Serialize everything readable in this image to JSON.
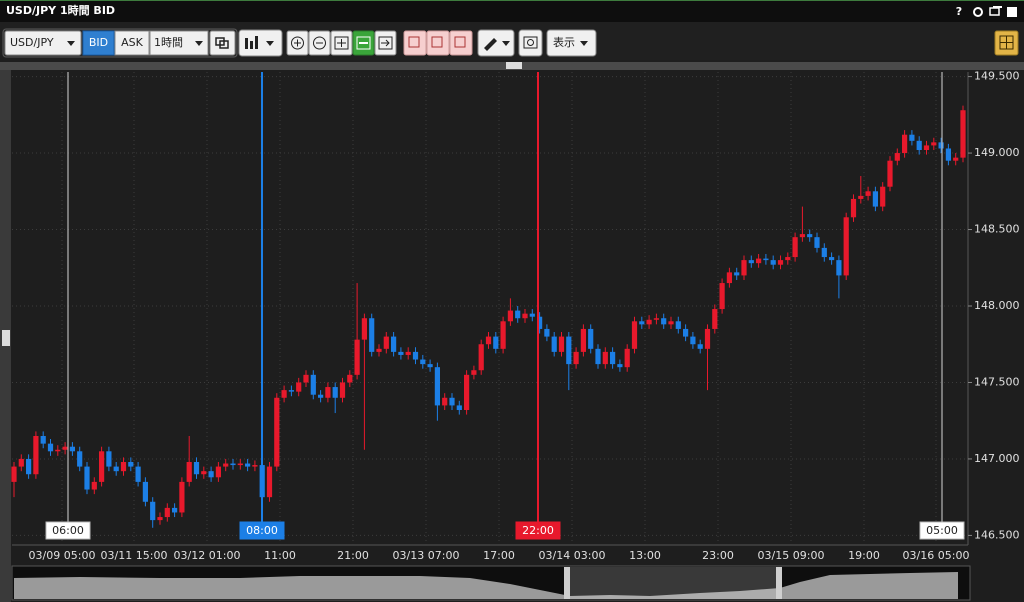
{
  "window": {
    "title": "USD/JPY 1時間 BID",
    "help": "?"
  },
  "toolbar": {
    "symbol": "USD/JPY",
    "bid": "BID",
    "ask": "ASK",
    "timeframe": "1時間",
    "view": "表示"
  },
  "chart_data": {
    "type": "candlestick",
    "up_color": "#e8192c",
    "down_color": "#1c7fe6",
    "grid": true,
    "open": [
      146.85,
      146.95,
      147.0,
      146.9,
      147.15,
      147.1,
      147.05,
      147.06,
      147.08,
      147.05,
      146.95,
      146.8,
      146.85,
      147.05,
      146.95,
      146.92,
      146.98,
      146.95,
      146.85,
      146.72,
      146.6,
      146.62,
      146.68,
      146.65,
      146.85,
      146.98,
      146.9,
      146.92,
      146.88,
      146.95,
      146.97,
      146.96,
      146.97,
      146.95,
      146.96,
      146.75,
      146.95,
      147.4,
      147.45,
      147.44,
      147.5,
      147.55,
      147.42,
      147.4,
      147.47,
      147.4,
      147.5,
      147.55,
      147.78,
      147.92,
      147.7,
      147.72,
      147.8,
      147.7,
      147.68,
      147.7,
      147.65,
      147.62,
      147.6,
      147.35,
      147.4,
      147.35,
      147.32,
      147.55,
      147.58,
      147.75,
      147.8,
      147.72,
      147.9,
      147.97,
      147.92,
      147.95,
      147.93,
      147.85,
      147.8,
      147.7,
      147.8,
      147.62,
      147.7,
      147.85,
      147.72,
      147.62,
      147.7,
      147.62,
      147.6,
      147.72,
      147.9,
      147.88,
      147.91,
      147.92,
      147.88,
      147.9,
      147.85,
      147.8,
      147.75,
      147.72,
      147.85,
      147.98,
      148.15,
      148.22,
      148.2,
      148.3,
      148.28,
      148.31,
      148.3,
      148.27,
      148.3,
      148.32,
      148.45,
      148.47,
      148.45,
      148.38,
      148.32,
      148.3,
      148.2,
      148.58,
      148.7,
      148.72,
      148.75,
      148.65,
      148.78,
      148.95,
      149.0,
      149.12,
      149.08,
      149.02,
      149.05,
      149.07,
      149.03,
      148.95,
      148.97
    ],
    "high": [
      146.98,
      147.03,
      147.03,
      147.18,
      147.18,
      147.13,
      147.09,
      147.11,
      147.11,
      147.08,
      146.98,
      146.88,
      147.08,
      147.08,
      146.98,
      147.01,
      147.01,
      146.98,
      146.88,
      146.75,
      146.65,
      146.71,
      146.71,
      146.88,
      147.15,
      147.01,
      146.95,
      146.95,
      146.98,
      147.0,
      147.0,
      147.0,
      147.0,
      146.99,
      146.99,
      146.98,
      147.43,
      147.48,
      147.48,
      147.53,
      147.58,
      147.58,
      147.45,
      147.5,
      147.5,
      147.53,
      147.58,
      148.15,
      147.95,
      147.95,
      147.75,
      147.83,
      147.83,
      147.73,
      147.73,
      147.73,
      147.68,
      147.65,
      147.63,
      147.43,
      147.43,
      147.38,
      147.58,
      147.61,
      147.78,
      147.83,
      147.83,
      147.93,
      148.05,
      148.0,
      147.98,
      147.98,
      147.96,
      147.88,
      147.83,
      147.83,
      147.83,
      147.73,
      147.88,
      147.88,
      147.75,
      147.73,
      147.73,
      147.65,
      147.75,
      147.93,
      147.93,
      147.94,
      147.95,
      147.95,
      147.93,
      147.93,
      147.88,
      147.83,
      147.78,
      147.88,
      148.01,
      148.18,
      148.25,
      148.25,
      148.33,
      148.33,
      148.34,
      148.34,
      148.33,
      148.33,
      148.35,
      148.48,
      148.65,
      148.5,
      148.48,
      148.41,
      148.35,
      148.33,
      148.61,
      148.73,
      148.85,
      148.78,
      148.78,
      148.81,
      148.98,
      149.03,
      149.15,
      149.15,
      149.11,
      149.08,
      149.1,
      149.1,
      149.06,
      149.0,
      149.31
    ],
    "low": [
      146.75,
      146.92,
      146.87,
      146.87,
      147.07,
      147.02,
      147.02,
      147.03,
      147.02,
      146.92,
      146.77,
      146.77,
      146.82,
      146.92,
      146.89,
      146.89,
      146.92,
      146.82,
      146.69,
      146.55,
      146.57,
      146.59,
      146.62,
      146.62,
      146.82,
      146.87,
      146.87,
      146.85,
      146.85,
      146.92,
      146.93,
      146.93,
      146.92,
      146.92,
      146.7,
      146.72,
      146.92,
      147.37,
      147.41,
      147.41,
      147.47,
      147.39,
      147.37,
      147.37,
      147.3,
      147.37,
      147.47,
      147.52,
      147.06,
      147.67,
      147.67,
      147.69,
      147.67,
      147.65,
      147.65,
      147.62,
      147.59,
      147.57,
      147.25,
      147.32,
      147.32,
      147.29,
      147.29,
      147.52,
      147.55,
      147.72,
      147.69,
      147.69,
      147.87,
      147.89,
      147.89,
      147.9,
      147.82,
      147.77,
      147.67,
      147.67,
      147.45,
      147.59,
      147.67,
      147.69,
      147.59,
      147.59,
      147.59,
      147.57,
      147.57,
      147.69,
      147.85,
      147.85,
      147.88,
      147.85,
      147.85,
      147.82,
      147.77,
      147.72,
      147.69,
      147.45,
      147.82,
      147.95,
      148.12,
      148.17,
      148.17,
      148.25,
      148.25,
      148.27,
      148.24,
      148.24,
      148.27,
      148.29,
      148.42,
      148.42,
      148.35,
      148.29,
      148.27,
      148.05,
      148.17,
      148.55,
      148.67,
      148.69,
      148.62,
      148.62,
      148.75,
      148.92,
      148.97,
      149.05,
      148.99,
      148.99,
      149.02,
      149.0,
      148.92,
      148.92,
      148.94
    ],
    "close": [
      146.95,
      147.0,
      146.9,
      147.15,
      147.1,
      147.05,
      147.06,
      147.08,
      147.05,
      146.95,
      146.8,
      146.85,
      147.05,
      146.95,
      146.92,
      146.98,
      146.95,
      146.85,
      146.72,
      146.6,
      146.62,
      146.68,
      146.65,
      146.85,
      146.98,
      146.9,
      146.92,
      146.88,
      146.95,
      146.97,
      146.96,
      146.97,
      146.95,
      146.96,
      146.75,
      146.95,
      147.4,
      147.45,
      147.44,
      147.5,
      147.55,
      147.42,
      147.4,
      147.47,
      147.4,
      147.5,
      147.55,
      147.78,
      147.92,
      147.7,
      147.72,
      147.8,
      147.7,
      147.68,
      147.7,
      147.65,
      147.62,
      147.6,
      147.35,
      147.4,
      147.35,
      147.32,
      147.55,
      147.58,
      147.75,
      147.8,
      147.72,
      147.9,
      147.97,
      147.92,
      147.95,
      147.93,
      147.85,
      147.8,
      147.7,
      147.8,
      147.62,
      147.7,
      147.85,
      147.72,
      147.62,
      147.7,
      147.62,
      147.6,
      147.72,
      147.9,
      147.88,
      147.91,
      147.92,
      147.88,
      147.9,
      147.85,
      147.8,
      147.75,
      147.72,
      147.85,
      147.98,
      148.15,
      148.22,
      148.2,
      148.3,
      148.28,
      148.31,
      148.3,
      148.27,
      148.3,
      148.32,
      148.45,
      148.47,
      148.45,
      148.38,
      148.32,
      148.3,
      148.2,
      148.58,
      148.7,
      148.72,
      148.75,
      148.65,
      148.78,
      148.95,
      149.0,
      149.12,
      149.08,
      149.02,
      149.05,
      149.07,
      149.03,
      148.95,
      148.97,
      149.28
    ],
    "ylim": [
      146.47,
      149.53
    ],
    "yticks": [
      {
        "value": 146.5,
        "label": "146.500"
      },
      {
        "value": 147,
        "label": "147.000"
      },
      {
        "value": 147.5,
        "label": "147.500"
      },
      {
        "value": 148,
        "label": "148.000"
      },
      {
        "value": 148.5,
        "label": "148.500"
      },
      {
        "value": 149,
        "label": "149.000"
      },
      {
        "value": 149.5,
        "label": "149.500"
      }
    ],
    "x_labels": [
      "03/09 05:00",
      "03/11 15:00",
      "03/12 01:00",
      "11:00",
      "21:00",
      "03/13 07:00",
      "17:00",
      "03/14 03:00",
      "13:00",
      "23:00",
      "03/15 09:00",
      "19:00",
      "03/16 05:00"
    ],
    "markers": [
      {
        "label": "06:00",
        "color": "#b8b8b8",
        "label_bg": "#ffffff",
        "label_color": "#222222"
      },
      {
        "label": "08:00",
        "color": "#1c7fe6",
        "label_bg": "#1c7fe6",
        "label_color": "#ffffff"
      },
      {
        "label": "22:00",
        "color": "#e8192c",
        "label_bg": "#e8192c",
        "label_color": "#ffffff"
      },
      {
        "label": "05:00",
        "color": "#b8b8b8",
        "label_bg": "#ffffff",
        "label_color": "#222222"
      }
    ]
  }
}
